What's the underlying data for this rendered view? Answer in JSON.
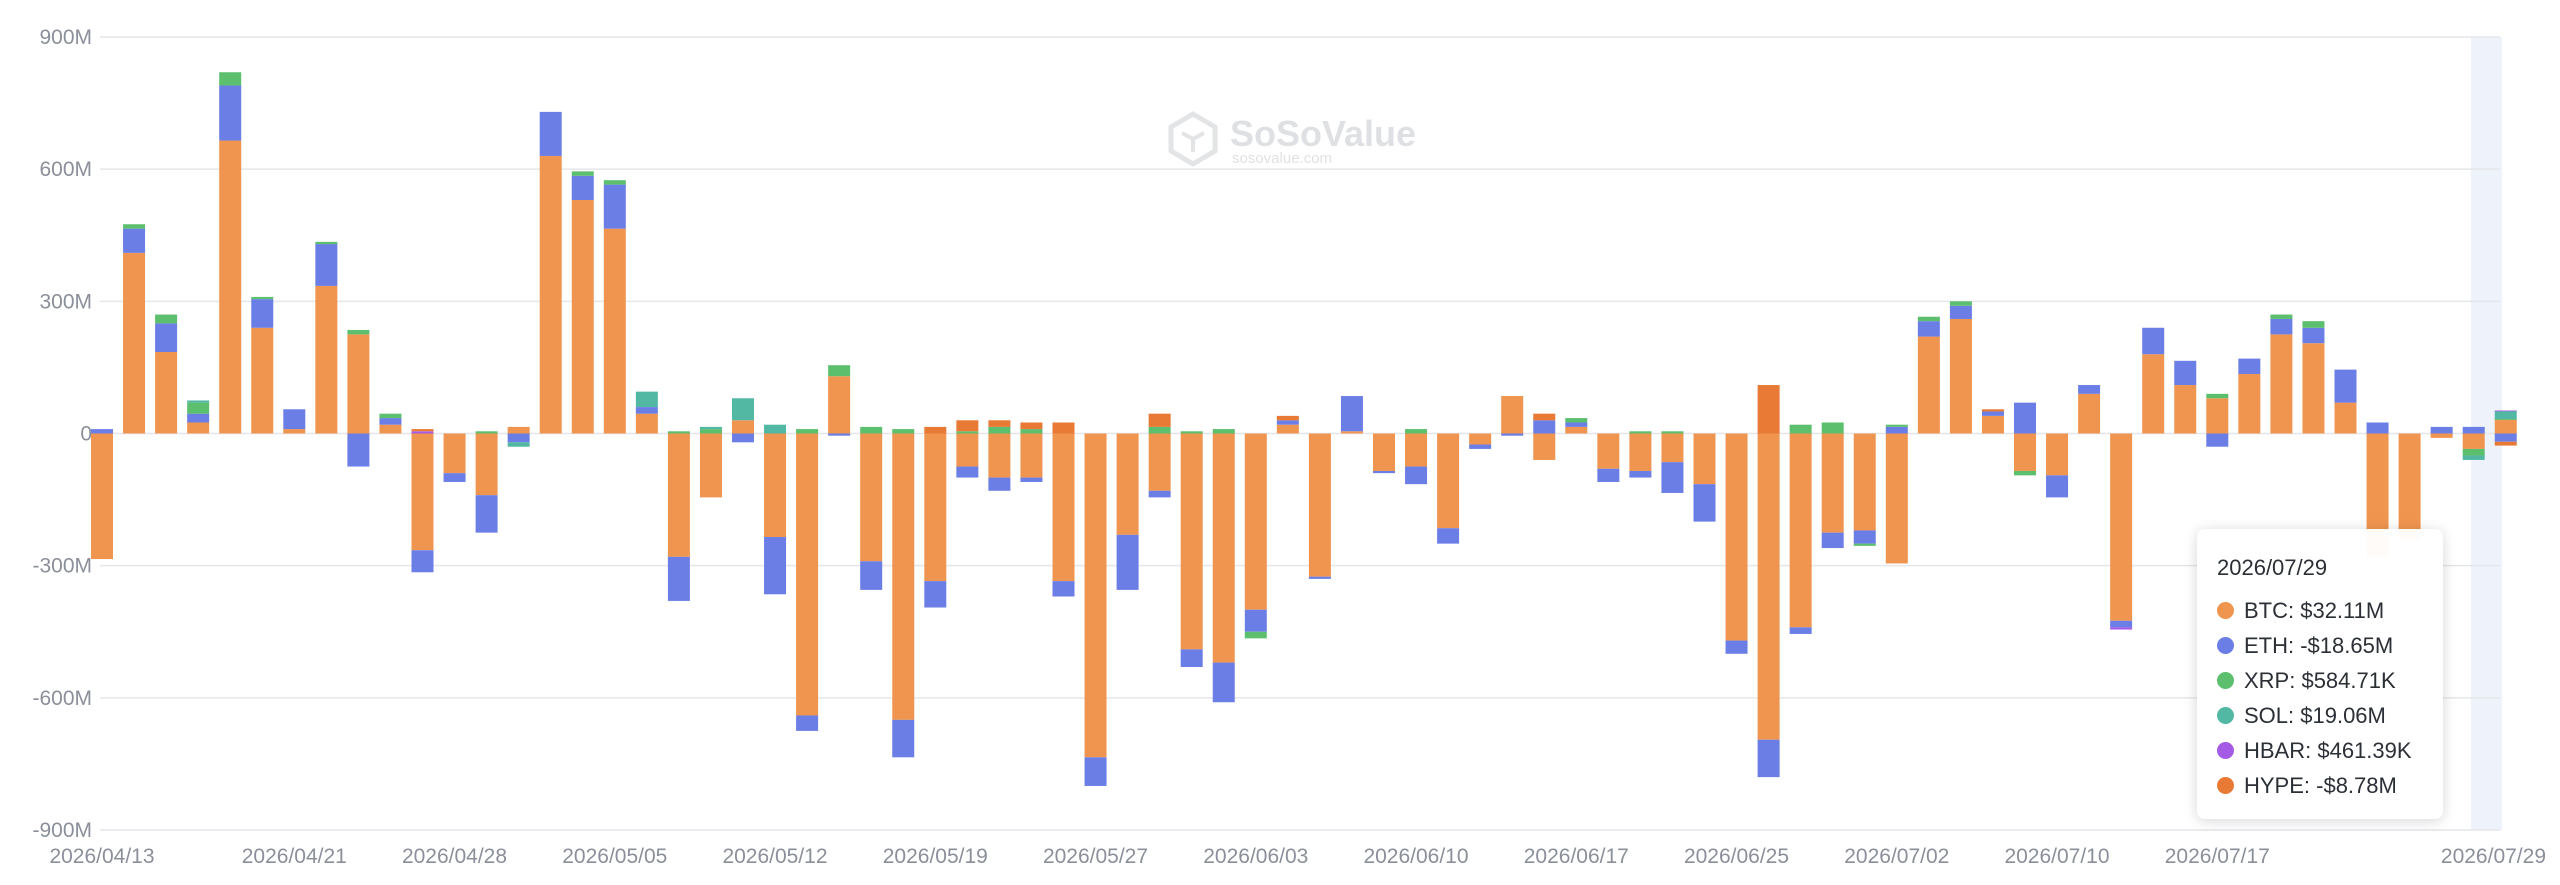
{
  "brand": {
    "name": "SoSoValue",
    "domain": "sosovalue.com"
  },
  "tooltip": {
    "date": "2026/07/29",
    "items": [
      {
        "label": "BTC: $32.11M",
        "color": "#f0954f"
      },
      {
        "label": "ETH: -$18.65M",
        "color": "#6b7ee6"
      },
      {
        "label": "XRP: $584.71K",
        "color": "#5bbf6e"
      },
      {
        "label": "SOL: $19.06M",
        "color": "#52b8a4"
      },
      {
        "label": "HBAR: $461.39K",
        "color": "#a55be6"
      },
      {
        "label": "HYPE: -$8.78M",
        "color": "#e97a35"
      }
    ]
  },
  "chart_data": {
    "type": "bar",
    "stacked": true,
    "title": "",
    "xlabel": "",
    "ylabel": "",
    "ylim": [
      -900,
      900
    ],
    "unit": "M",
    "y_ticks": [
      "900M",
      "600M",
      "300M",
      "0",
      "-300M",
      "-600M",
      "-900M"
    ],
    "y_tick_values": [
      900,
      600,
      300,
      0,
      -300,
      -600,
      -900
    ],
    "x_tick_labels": [
      "2026/04/13",
      "2026/04/21",
      "2026/04/28",
      "2026/05/05",
      "2026/05/12",
      "2026/05/19",
      "2026/05/27",
      "2026/06/03",
      "2026/06/10",
      "2026/06/17",
      "2026/06/25",
      "2026/07/02",
      "2026/07/10",
      "2026/07/17",
      "2026/07/29"
    ],
    "x_tick_index": [
      0,
      6,
      11,
      16,
      21,
      26,
      31,
      36,
      41,
      46,
      51,
      56,
      61,
      66,
      75
    ],
    "grid": true,
    "highlight_index": 75,
    "series_order": [
      "BTC",
      "ETH",
      "XRP",
      "SOL",
      "HBAR",
      "HYPE"
    ],
    "colors": {
      "BTC": "#f0954f",
      "ETH": "#6b7ee6",
      "XRP": "#5bbf6e",
      "SOL": "#52b8a4",
      "HBAR": "#a55be6",
      "HYPE": "#e97a35"
    },
    "bars": [
      {
        "BTC": -285,
        "ETH": 10
      },
      {
        "BTC": 410,
        "ETH": 55,
        "XRP": 10
      },
      {
        "BTC": 185,
        "ETH": 65,
        "XRP": 20
      },
      {
        "BTC": 25,
        "ETH": 20,
        "XRP": 25,
        "SOL": 5
      },
      {
        "BTC": 665,
        "ETH": 125,
        "XRP": 30
      },
      {
        "BTC": 240,
        "ETH": 65,
        "XRP": 5
      },
      {
        "BTC": 10,
        "ETH": 45
      },
      {
        "BTC": 335,
        "ETH": 95,
        "XRP": 5
      },
      {
        "BTC": 225,
        "ETH": -75,
        "XRP": 10
      },
      {
        "BTC": 20,
        "ETH": 15,
        "XRP": 10
      },
      {
        "BTC": -265,
        "ETH": -50,
        "HBAR": 5,
        "HYPE": 5
      },
      {
        "BTC": -90,
        "ETH": -20
      },
      {
        "BTC": -140,
        "ETH": -85,
        "XRP": 5
      },
      {
        "BTC": 15,
        "ETH": -20,
        "SOL": -10
      },
      {
        "BTC": 630,
        "ETH": 100
      },
      {
        "BTC": 530,
        "ETH": 55,
        "XRP": 10
      },
      {
        "BTC": 465,
        "ETH": 100,
        "XRP": 10
      },
      {
        "BTC": 45,
        "ETH": 15,
        "SOL": 35
      },
      {
        "BTC": -280,
        "ETH": -100,
        "XRP": 5
      },
      {
        "BTC": -145,
        "XRP": 10,
        "SOL": 5
      },
      {
        "BTC": 30,
        "ETH": -20,
        "SOL": 50
      },
      {
        "BTC": -235,
        "ETH": -130,
        "SOL": 20
      },
      {
        "BTC": -640,
        "ETH": -35,
        "XRP": 10
      },
      {
        "BTC": 130,
        "ETH": -5,
        "XRP": 25
      },
      {
        "BTC": -290,
        "ETH": -65,
        "XRP": 15
      },
      {
        "BTC": -650,
        "ETH": -85,
        "XRP": 10
      },
      {
        "BTC": -335,
        "ETH": -60,
        "HYPE": 15
      },
      {
        "BTC": -75,
        "ETH": -25,
        "XRP": 5,
        "HYPE": 25
      },
      {
        "BTC": -100,
        "ETH": -30,
        "XRP": 15,
        "HYPE": 15
      },
      {
        "BTC": -100,
        "ETH": -10,
        "XRP": 10,
        "HYPE": 15
      },
      {
        "BTC": -335,
        "ETH": -35,
        "HYPE": 25
      },
      {
        "BTC": -735,
        "ETH": -65
      },
      {
        "BTC": -230,
        "ETH": -125
      },
      {
        "BTC": -130,
        "ETH": -15,
        "XRP": 15,
        "HYPE": 30
      },
      {
        "BTC": -490,
        "ETH": -40,
        "XRP": 5
      },
      {
        "BTC": -520,
        "ETH": -90,
        "XRP": 10
      },
      {
        "BTC": -400,
        "ETH": -50,
        "XRP": -15
      },
      {
        "BTC": 20,
        "ETH": 10,
        "HYPE": 10
      },
      {
        "BTC": -325,
        "ETH": -5
      },
      {
        "BTC": 5,
        "ETH": 80
      },
      {
        "BTC": -85,
        "ETH": -5
      },
      {
        "BTC": -75,
        "ETH": -40,
        "XRP": 10
      },
      {
        "BTC": -215,
        "ETH": -35
      },
      {
        "BTC": -25,
        "ETH": -10
      },
      {
        "BTC": 85,
        "ETH": -5
      },
      {
        "BTC": -60,
        "ETH": 30,
        "HYPE": 15
      },
      {
        "BTC": 15,
        "ETH": 10,
        "XRP": 10
      },
      {
        "BTC": -80,
        "ETH": -30
      },
      {
        "BTC": -85,
        "ETH": -15,
        "XRP": 5
      },
      {
        "BTC": -65,
        "ETH": -70,
        "XRP": 5
      },
      {
        "BTC": -115,
        "ETH": -85
      },
      {
        "BTC": -470,
        "ETH": -30
      },
      {
        "BTC": -695,
        "ETH": -85,
        "HYPE": 110
      },
      {
        "BTC": -440,
        "ETH": -15,
        "XRP": 20
      },
      {
        "BTC": -225,
        "ETH": -35,
        "XRP": 25
      },
      {
        "BTC": -220,
        "ETH": -30,
        "XRP": -5
      },
      {
        "BTC": -295,
        "ETH": 15,
        "XRP": 5
      },
      {
        "BTC": 220,
        "ETH": 35,
        "XRP": 10
      },
      {
        "BTC": 260,
        "ETH": 30,
        "XRP": 10
      },
      {
        "BTC": 40,
        "ETH": 10,
        "HYPE": 5
      },
      {
        "BTC": -85,
        "ETH": 70,
        "XRP": -10
      },
      {
        "BTC": -95,
        "ETH": -50
      },
      {
        "BTC": 90,
        "ETH": 20
      },
      {
        "BTC": -425,
        "ETH": -15,
        "HBAR": -5
      },
      {
        "BTC": 180,
        "ETH": 60
      },
      {
        "BTC": 110,
        "ETH": 55
      },
      {
        "BTC": 80,
        "ETH": -30,
        "XRP": 10
      },
      {
        "BTC": 135,
        "ETH": 35
      },
      {
        "BTC": 225,
        "ETH": 35,
        "XRP": 10
      },
      {
        "BTC": 205,
        "ETH": 35,
        "XRP": 15
      },
      {
        "BTC": 70,
        "ETH": 75
      },
      {
        "BTC": -280,
        "ETH": 25
      },
      {
        "BTC": -240
      },
      {
        "BTC": -10,
        "ETH": 15
      },
      {
        "BTC": -35,
        "ETH": 15,
        "XRP": -15,
        "SOL": -10
      },
      {
        "BTC": 32.11,
        "ETH": -18.65,
        "XRP": 0.58471,
        "SOL": 19.06,
        "HBAR": 0.46139,
        "HYPE": -8.78
      }
    ]
  }
}
